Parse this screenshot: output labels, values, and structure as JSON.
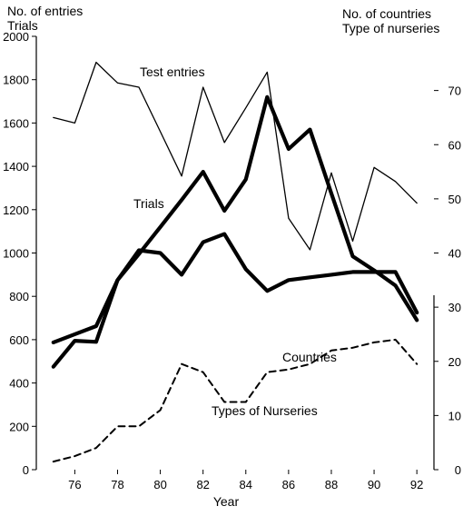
{
  "chart_data": {
    "type": "line",
    "left_axis_title_lines": [
      "No. of entries",
      "Trials"
    ],
    "right_axis_title_lines": [
      "No. of countries",
      "Type of nurseries"
    ],
    "xlabel": "Year",
    "x_ticks": [
      {
        "value": 76,
        "label": "76"
      },
      {
        "value": 78,
        "label": "78"
      },
      {
        "value": 80,
        "label": "80"
      },
      {
        "value": 82,
        "label": "82"
      },
      {
        "value": 84,
        "label": "84"
      },
      {
        "value": 86,
        "label": "86"
      },
      {
        "value": 88,
        "label": "88"
      },
      {
        "value": 90,
        "label": "90"
      },
      {
        "value": 92,
        "label": "92"
      }
    ],
    "xlim": [
      74.2,
      92.8
    ],
    "left_axis": {
      "ylim": [
        0,
        2000
      ],
      "ticks": [
        {
          "value": 0,
          "label": "0"
        },
        {
          "value": 200,
          "label": "200"
        },
        {
          "value": 400,
          "label": "400"
        },
        {
          "value": 600,
          "label": "600"
        },
        {
          "value": 800,
          "label": "800"
        },
        {
          "value": 1000,
          "label": "1000"
        },
        {
          "value": 1200,
          "label": "1200"
        },
        {
          "value": 1400,
          "label": "1400"
        },
        {
          "value": 1600,
          "label": "1600"
        },
        {
          "value": 1800,
          "label": "1800"
        },
        {
          "value": 2000,
          "label": "2000"
        }
      ]
    },
    "right_axis": {
      "ylim": [
        0,
        80
      ],
      "ticks": [
        {
          "value": 0,
          "label": "0"
        },
        {
          "value": 10,
          "label": "10"
        },
        {
          "value": 20,
          "label": "20"
        },
        {
          "value": 30,
          "label": "30"
        },
        {
          "value": 40,
          "label": "40"
        },
        {
          "value": 50,
          "label": "50"
        },
        {
          "value": 60,
          "label": "60"
        },
        {
          "value": 70,
          "label": "70"
        }
      ]
    },
    "series": [
      {
        "name": "Test entries",
        "axis": "left",
        "style": "thin",
        "x": [
          75,
          76,
          77,
          78,
          79,
          80,
          81,
          82,
          83,
          84,
          85,
          86,
          87,
          88,
          89,
          90,
          91,
          92
        ],
        "values": [
          1625,
          1600,
          1880,
          1785,
          1765,
          1560,
          1355,
          1765,
          1510,
          1670,
          1835,
          1160,
          1015,
          1370,
          1055,
          1395,
          1330,
          1230
        ]
      },
      {
        "name": "Trials",
        "axis": "left",
        "style": "heavy",
        "x": [
          75,
          76,
          77,
          78,
          79,
          80,
          81,
          82,
          83,
          84,
          85,
          86,
          87,
          88,
          89,
          90,
          91,
          92
        ],
        "values": [
          475,
          595,
          590,
          875,
          995,
          1120,
          1245,
          1375,
          1195,
          1340,
          1720,
          1480,
          1570,
          1275,
          985,
          920,
          850,
          690
        ]
      },
      {
        "name": "Countries",
        "axis": "right",
        "style": "heavy",
        "x": [
          75,
          76,
          77,
          78,
          79,
          80,
          81,
          82,
          83,
          84,
          85,
          86,
          87,
          88,
          89,
          90,
          91,
          92
        ],
        "values": [
          23.5,
          25,
          26.5,
          35,
          40.5,
          40,
          36,
          42,
          43.5,
          37,
          33,
          35,
          35.5,
          36,
          36.5,
          36.5,
          36.5,
          29
        ]
      },
      {
        "name": "Types of Nurseries",
        "axis": "right",
        "style": "dashed",
        "x": [
          75,
          76,
          77,
          78,
          79,
          80,
          81,
          82,
          83,
          84,
          85,
          86,
          87,
          88,
          89,
          90,
          91,
          92
        ],
        "values": [
          1.5,
          2.5,
          4,
          8,
          8,
          11,
          19.5,
          18,
          12.5,
          12.5,
          18,
          18.5,
          19.5,
          22,
          22.5,
          23.5,
          24,
          19.5
        ]
      }
    ],
    "series_labels": [
      "Test entries",
      "Trials",
      "Countries",
      "Types of Nurseries"
    ],
    "grid": false
  }
}
